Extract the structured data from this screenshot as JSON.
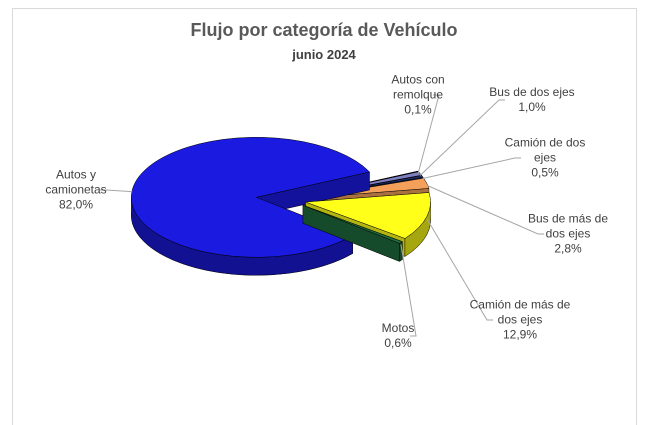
{
  "chart_data": {
    "type": "pie",
    "title": "Flujo por categoría de Vehículo",
    "subtitle": "junio 2024",
    "categories": [
      "Autos con remolque",
      "Bus de dos ejes",
      "Camión de dos ejes",
      "Bus de más de dos ejes",
      "Camión de más de dos ejes",
      "Motos",
      "Autos y camionetas"
    ],
    "values": [
      0.1,
      1.0,
      0.5,
      2.8,
      12.9,
      0.6,
      82.0
    ],
    "value_labels": [
      "0,1%",
      "1,0%",
      "0,5%",
      "2,8%",
      "12,9%",
      "0,6%",
      "82,0%"
    ],
    "colors": [
      "#222222",
      "#7f7fbf",
      "#1f2f6f",
      "#f4a05a",
      "#ffff1a",
      "#1e6b3c",
      "#1a1ae0"
    ]
  }
}
